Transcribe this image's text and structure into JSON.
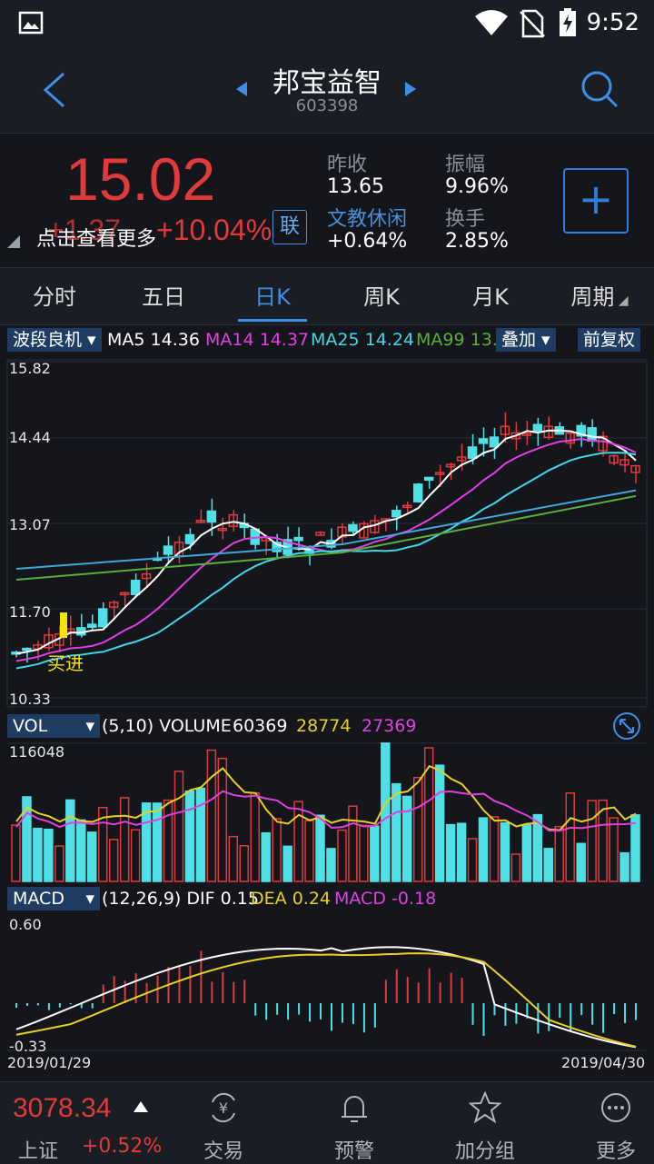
{
  "status_bar": {
    "time": "9:52"
  },
  "header": {
    "title": "邦宝益智",
    "code": "603398"
  },
  "quote": {
    "price": "15.02",
    "change": "+1.37",
    "change_pct": "+10.04%",
    "hint": "点击查看更多",
    "lian_label": "联",
    "prev_close_label": "昨收",
    "prev_close": "13.65",
    "amplitude_label": "振幅",
    "amplitude": "9.96%",
    "sector": "文教休闲",
    "sector_change": "+0.64%",
    "turnover_label": "换手",
    "turnover": "2.85%"
  },
  "tabs": [
    "分时",
    "五日",
    "日K",
    "周K",
    "月K",
    "周期"
  ],
  "active_tab": "日K",
  "kline": {
    "indicator": "波段良机",
    "overlay": "叠加",
    "adjust": "前复权",
    "ma5": "MA5",
    "ma5_val": "14.36",
    "ma14": "MA14",
    "ma14_val": "14.37",
    "ma25": "MA25",
    "ma25_val": "14.24",
    "ma99": "MA99",
    "ma99_val": "13.",
    "y_labels": [
      "15.82",
      "14.44",
      "13.07",
      "11.70",
      "10.33"
    ],
    "buy_label": "买进"
  },
  "volume": {
    "indicator": "VOL",
    "params": "(5,10) VOLUME",
    "v1": "60369",
    "v2": "28774",
    "v3": "27369",
    "max_label": "116048"
  },
  "macd": {
    "indicator": "MACD",
    "params": "(12,26,9) DIF",
    "dif": "0.15",
    "dea_label": "DEA",
    "dea": "0.24",
    "macd_label": "MACD",
    "macd": "-0.18",
    "top": "0.60",
    "bottom": "-0.33",
    "date_start": "2019/01/29",
    "date_end": "2019/04/30"
  },
  "bottom": {
    "index_value": "3078.34",
    "index_name": "上证",
    "index_change": "+0.52%",
    "nav": [
      "交易",
      "预警",
      "加分组",
      "更多"
    ]
  },
  "colors": {
    "up": "#e03a3a",
    "down": "#4fe0e6",
    "accent": "#3d8fe6"
  }
}
